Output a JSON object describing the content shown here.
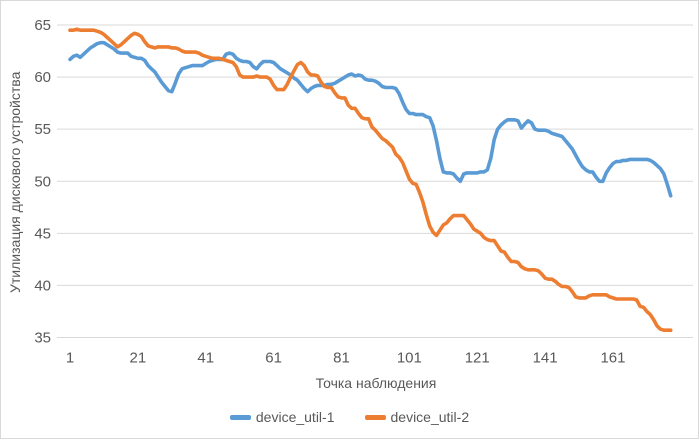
{
  "chart_data": {
    "type": "line",
    "title": "",
    "xlabel": "Точка наблюдения",
    "ylabel": "Утилизация дискового устройства",
    "ylim": [
      35,
      65
    ],
    "y_ticks": [
      65,
      60,
      55,
      50,
      45,
      40,
      35
    ],
    "x_tick_labels": [
      "1",
      "21",
      "41",
      "61",
      "81",
      "101",
      "121",
      "141",
      "161"
    ],
    "x_tick_positions": [
      1,
      21,
      41,
      61,
      81,
      101,
      121,
      141,
      161
    ],
    "n_points": 178,
    "grid": true,
    "legend_position": "bottom",
    "axis_text_color": "#595959",
    "gridline_color": "#D9D9D9",
    "border_color": "#D9D9D9",
    "series": [
      {
        "name": "device_util-1",
        "color": "#5B9BD5",
        "values": [
          61.7,
          62.0,
          62.1,
          61.9,
          62.2,
          62.5,
          62.8,
          63.0,
          63.2,
          63.3,
          63.3,
          63.1,
          62.9,
          62.7,
          62.4,
          62.3,
          62.3,
          62.3,
          62.0,
          61.9,
          61.8,
          61.8,
          61.6,
          61.1,
          60.8,
          60.5,
          60.0,
          59.5,
          59.1,
          58.7,
          58.6,
          59.4,
          60.3,
          60.8,
          60.9,
          61.0,
          61.1,
          61.1,
          61.1,
          61.1,
          61.3,
          61.5,
          61.6,
          61.7,
          61.7,
          61.7,
          62.2,
          62.3,
          62.2,
          61.8,
          61.6,
          61.5,
          61.5,
          61.4,
          61.0,
          60.8,
          61.2,
          61.5,
          61.5,
          61.5,
          61.4,
          61.1,
          60.8,
          60.6,
          60.4,
          60.2,
          59.9,
          59.7,
          59.3,
          58.9,
          58.6,
          58.9,
          59.1,
          59.2,
          59.2,
          59.2,
          59.3,
          59.3,
          59.4,
          59.6,
          59.8,
          60.0,
          60.2,
          60.3,
          60.1,
          60.2,
          60.1,
          59.8,
          59.7,
          59.7,
          59.6,
          59.4,
          59.1,
          59.0,
          59.0,
          59.0,
          58.9,
          58.4,
          57.6,
          56.9,
          56.5,
          56.5,
          56.4,
          56.4,
          56.4,
          56.2,
          56.1,
          55.3,
          53.9,
          52.2,
          50.9,
          50.8,
          50.8,
          50.7,
          50.3,
          50.0,
          50.7,
          50.8,
          50.8,
          50.8,
          50.8,
          50.9,
          50.9,
          51.1,
          52.2,
          54.0,
          55.0,
          55.4,
          55.7,
          55.9,
          55.9,
          55.9,
          55.8,
          55.1,
          55.5,
          55.8,
          55.6,
          55.0,
          54.9,
          54.9,
          54.9,
          54.8,
          54.6,
          54.5,
          54.4,
          54.3,
          53.9,
          53.5,
          53.1,
          52.5,
          51.9,
          51.4,
          51.1,
          50.9,
          50.9,
          50.4,
          50.0,
          50.0,
          50.8,
          51.3,
          51.7,
          51.9,
          51.9,
          52.0,
          52.0,
          52.1,
          52.1,
          52.1,
          52.1,
          52.1,
          52.1,
          52.0,
          51.8,
          51.5,
          51.2,
          50.7,
          49.7,
          48.6
        ]
      },
      {
        "name": "device_util-2",
        "color": "#ED7D31",
        "values": [
          64.5,
          64.5,
          64.6,
          64.5,
          64.5,
          64.5,
          64.5,
          64.5,
          64.4,
          64.3,
          64.1,
          63.8,
          63.5,
          63.2,
          62.9,
          63.1,
          63.4,
          63.7,
          64.0,
          64.2,
          64.1,
          63.9,
          63.4,
          63.0,
          62.9,
          62.8,
          62.9,
          62.9,
          62.9,
          62.9,
          62.8,
          62.8,
          62.7,
          62.5,
          62.4,
          62.4,
          62.4,
          62.4,
          62.3,
          62.1,
          62.0,
          61.9,
          61.8,
          61.8,
          61.8,
          61.7,
          61.6,
          61.5,
          61.4,
          61.0,
          60.2,
          60.0,
          60.0,
          60.0,
          60.0,
          60.1,
          60.0,
          60.0,
          60.0,
          59.8,
          59.2,
          58.8,
          58.8,
          58.8,
          59.3,
          60.0,
          60.6,
          61.2,
          61.4,
          61.1,
          60.5,
          60.2,
          60.2,
          60.1,
          59.5,
          59.1,
          59.0,
          59.0,
          58.5,
          58.1,
          58.0,
          58.0,
          57.3,
          57.0,
          57.0,
          56.5,
          56.1,
          56.0,
          56.0,
          55.2,
          54.9,
          54.5,
          54.1,
          53.9,
          53.6,
          53.3,
          52.6,
          52.3,
          51.8,
          51.0,
          50.2,
          49.8,
          49.7,
          48.9,
          48.0,
          46.8,
          45.7,
          45.1,
          44.8,
          45.3,
          45.8,
          46.0,
          46.4,
          46.7,
          46.7,
          46.7,
          46.7,
          46.3,
          45.9,
          45.4,
          45.2,
          45.0,
          44.6,
          44.4,
          44.3,
          44.3,
          43.8,
          43.3,
          43.2,
          42.7,
          42.3,
          42.3,
          42.2,
          41.8,
          41.6,
          41.5,
          41.5,
          41.5,
          41.4,
          41.1,
          40.7,
          40.6,
          40.6,
          40.4,
          40.1,
          39.9,
          39.9,
          39.8,
          39.4,
          38.9,
          38.8,
          38.8,
          38.8,
          39.0,
          39.1,
          39.1,
          39.1,
          39.1,
          39.1,
          38.9,
          38.8,
          38.7,
          38.7,
          38.7,
          38.7,
          38.7,
          38.7,
          38.6,
          38.0,
          37.9,
          37.5,
          37.2,
          36.7,
          36.1,
          35.8,
          35.7,
          35.7,
          35.7
        ]
      }
    ]
  }
}
